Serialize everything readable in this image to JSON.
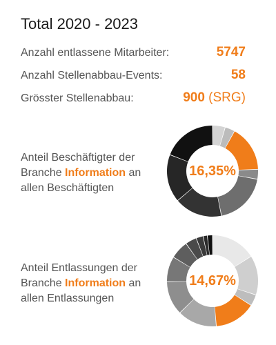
{
  "title": "Total 2020 - 2023",
  "stats": [
    {
      "label": "Anzahl entlassene Mitarbeiter:",
      "value": "5747",
      "suffix": ""
    },
    {
      "label": "Anzahl Stellenabbau-Events:",
      "value": "58",
      "suffix": ""
    },
    {
      "label": "Grösster Stellenabbau:",
      "value": "900",
      "suffix": "(SRG)"
    }
  ],
  "highlight_color": "#f07d1a",
  "chart_data": [
    {
      "type": "pie",
      "style": "donut",
      "center_label": "16,35%",
      "caption_before": "Anteil Beschäftigter der Branche ",
      "caption_highlight": "Information",
      "caption_after": " an allen Beschäftigten",
      "highlight_value": 16.35,
      "slices": [
        {
          "value": 4.5,
          "color": "#d4d4d4"
        },
        {
          "value": 3.5,
          "color": "#bcbcbc"
        },
        {
          "value": 16.35,
          "color": "#f07d1a"
        },
        {
          "value": 3.5,
          "color": "#8a8a8a"
        },
        {
          "value": 19,
          "color": "#6e6e6e"
        },
        {
          "value": 17,
          "color": "#333333"
        },
        {
          "value": 17,
          "color": "#262626"
        },
        {
          "value": 19.15,
          "color": "#111111"
        }
      ]
    },
    {
      "type": "pie",
      "style": "donut",
      "center_label": "14,67%",
      "caption_before": "Anteil Entlassungen der Branche ",
      "caption_highlight": "Information",
      "caption_after": " an allen Entlassungen",
      "highlight_value": 14.67,
      "slices": [
        {
          "value": 16,
          "color": "#e8e8e8"
        },
        {
          "value": 14,
          "color": "#cfcfcf"
        },
        {
          "value": 4,
          "color": "#bdbdbd"
        },
        {
          "value": 14.67,
          "color": "#f07d1a"
        },
        {
          "value": 14,
          "color": "#a8a8a8"
        },
        {
          "value": 12,
          "color": "#8e8e8e"
        },
        {
          "value": 9,
          "color": "#777777"
        },
        {
          "value": 6.5,
          "color": "#5e5e5e"
        },
        {
          "value": 4,
          "color": "#4a4a4a"
        },
        {
          "value": 2.5,
          "color": "#3a3a3a"
        },
        {
          "value": 1.5,
          "color": "#2a2a2a"
        },
        {
          "value": 1.83,
          "color": "#111111"
        }
      ]
    }
  ]
}
